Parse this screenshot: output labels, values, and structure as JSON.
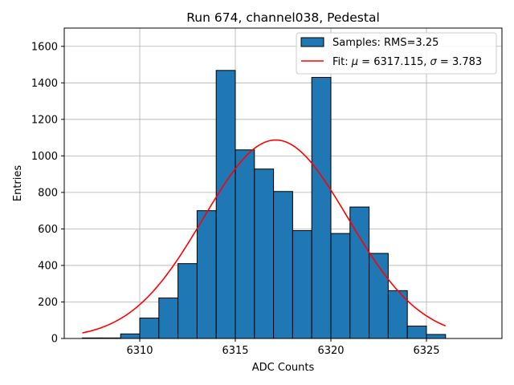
{
  "chart_data": {
    "type": "bar",
    "title": "Run 674, channel038, Pedestal",
    "xlabel": "ADC Counts",
    "ylabel": "Entries",
    "xlim": [
      6306.05,
      6328.95
    ],
    "ylim": [
      0,
      1700
    ],
    "grid": true,
    "xticks": [
      6310,
      6315,
      6320,
      6325
    ],
    "yticks": [
      0,
      200,
      400,
      600,
      800,
      1000,
      1200,
      1400,
      1600
    ],
    "bin_width": 1,
    "bin_left_edges": [
      6307,
      6308,
      6309,
      6310,
      6311,
      6312,
      6313,
      6314,
      6315,
      6316,
      6317,
      6318,
      6319,
      6320,
      6321,
      6322,
      6323,
      6324,
      6325
    ],
    "values": [
      3,
      3,
      25,
      112,
      222,
      410,
      700,
      1468,
      1033,
      928,
      805,
      591,
      1430,
      575,
      720,
      466,
      262,
      68,
      22
    ],
    "bar_color": "#1f77b4",
    "fit": {
      "label_prefix": "Fit: ",
      "mu_symbol": "μ",
      "sigma_symbol": "σ",
      "mu": 6317.115,
      "sigma": 3.783,
      "mu_text": "6317.115",
      "sigma_text": "3.783",
      "amplitude": 1087,
      "x_range": [
        6307,
        6326
      ],
      "color": "#ff0000"
    },
    "legend": {
      "placement": "top-right",
      "samples_label": "Samples: RMS=3.25"
    }
  }
}
